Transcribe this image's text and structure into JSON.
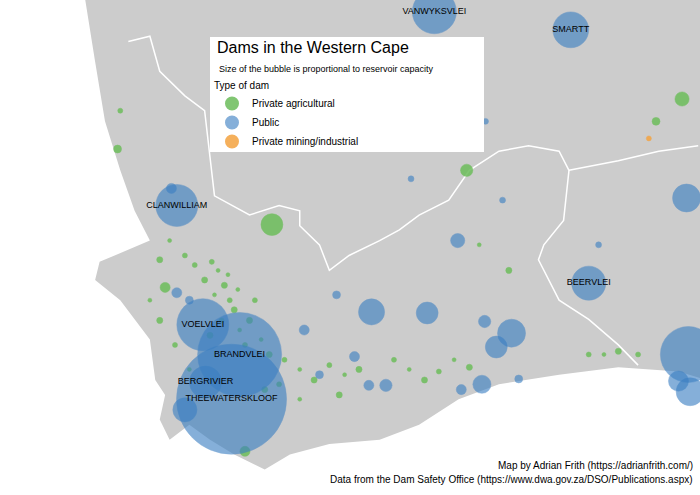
{
  "chart_data": {
    "type": "bubble_map",
    "title": "Dams in the Western Cape",
    "subtitle": "Size of the bubble is proportional to reservoir capacity",
    "legend_title": "Type of dam",
    "xlim": [
      16.9,
      24.7
    ],
    "ylim": [
      -34.9,
      -30.25
    ],
    "tick_labels": false,
    "grid": false,
    "land": {
      "color": "#cccccc",
      "lon": [
        24.7,
        17.85,
        17.96,
        18.07,
        18.24,
        18.4,
        18.57,
        18.01,
        17.96,
        18.24,
        18.57,
        18.63,
        18.74,
        18.68,
        18.79,
        19.01,
        19.24,
        19.51,
        19.85,
        20.13,
        20.57,
        21.13,
        21.57,
        22.01,
        22.46,
        23.13,
        23.79,
        24.46,
        24.7
      ],
      "lat": [
        -30.25,
        -30.25,
        -30.83,
        -31.39,
        -31.85,
        -32.23,
        -32.51,
        -32.71,
        -32.88,
        -33.07,
        -33.44,
        -33.82,
        -33.96,
        -34.19,
        -34.38,
        -34.24,
        -34.38,
        -34.52,
        -34.66,
        -34.52,
        -34.42,
        -34.38,
        -34.24,
        -34.0,
        -33.86,
        -33.77,
        -33.7,
        -33.74,
        -33.8
      ]
    },
    "borders": {
      "color": "#ffffff",
      "lines": [
        {
          "lon": [
            18.33,
            18.57,
            18.68,
            18.96,
            19.18,
            19.24,
            19.29,
            19.68,
            20.01,
            20.24,
            20.24,
            20.46,
            20.57,
            20.79,
            21.13,
            21.35,
            21.57,
            21.9,
            22.13,
            22.46,
            22.79,
            23.13,
            23.24,
            23.18,
            22.96,
            22.9,
            23.13,
            23.46,
            23.79,
            24.01
          ],
          "lat": [
            -30.64,
            -30.59,
            -30.92,
            -31.15,
            -31.29,
            -31.76,
            -32.09,
            -32.27,
            -32.18,
            -32.23,
            -32.37,
            -32.55,
            -32.79,
            -32.65,
            -32.51,
            -32.41,
            -32.27,
            -32.13,
            -31.85,
            -31.67,
            -31.62,
            -31.67,
            -31.85,
            -32.32,
            -32.55,
            -32.69,
            -33.07,
            -33.25,
            -33.49,
            -33.68
          ]
        },
        {
          "lon": [
            23.24,
            23.79,
            24.24,
            24.68
          ],
          "lat": [
            -31.85,
            -31.76,
            -31.67,
            -31.62
          ]
        }
      ]
    },
    "series": [
      {
        "name": "Private agricultural",
        "color": "#6cbd5b",
        "lon": [
          19.93,
          24.5,
          22.1,
          18.21,
          24.21,
          18.74,
          19.63,
          19.26,
          19.33,
          19.4,
          19.46,
          19.29,
          19.51,
          19.37,
          19.57,
          19.24,
          19.63,
          19.44,
          19.18,
          19.07,
          19.55,
          19.68,
          19.74,
          19.81,
          19.9,
          20.07,
          20.24,
          20.4,
          20.57,
          20.74,
          20.9,
          21.29,
          21.46,
          21.63,
          21.79,
          21.96,
          22.13,
          23.46,
          23.63,
          23.79,
          24.01,
          18.79,
          18.68,
          18.96,
          18.57,
          18.68,
          18.85,
          19.01,
          19.85,
          20.01,
          20.24,
          20.68,
          18.24,
          22.24,
          22.57
        ],
        "lat": [
          -32.36,
          -31.18,
          -31.85,
          -31.65,
          -31.39,
          -32.95,
          -34.49,
          -32.71,
          -32.79,
          -32.93,
          -33.07,
          -33.02,
          -33.16,
          -33.26,
          -33.35,
          -33.4,
          -33.49,
          -32.83,
          -32.88,
          -32.74,
          -32.97,
          -33.26,
          -33.07,
          -33.44,
          -33.58,
          -33.63,
          -33.72,
          -33.82,
          -33.68,
          -33.77,
          -33.72,
          -33.63,
          -33.72,
          -33.82,
          -33.74,
          -33.63,
          -33.7,
          -33.58,
          -33.58,
          -33.55,
          -33.58,
          -32.51,
          -32.69,
          -32.65,
          -33.07,
          -33.26,
          -33.49,
          -33.72,
          -33.91,
          -33.86,
          -34.0,
          -33.96,
          -31.29,
          -32.55,
          -32.79
        ],
        "capacity": [
          19,
          8,
          6,
          2.5,
          2.5,
          4,
          4,
          1,
          0.5,
          1.5,
          1,
          0.5,
          1.5,
          1,
          0.5,
          1.5,
          1,
          0.5,
          1.5,
          1,
          0.5,
          1.5,
          1,
          0.5,
          1.5,
          1,
          0.5,
          1.5,
          1,
          0.5,
          1.5,
          1,
          0.5,
          1.5,
          1,
          0.5,
          1.5,
          1,
          0.5,
          1.5,
          1,
          0.5,
          1.5,
          1,
          0.5,
          1.5,
          1,
          0.5,
          1.5,
          1,
          0.5,
          1.5,
          1,
          0.5,
          1.5
        ]
      },
      {
        "name": "Public",
        "color": "#3b7fc2",
        "lon": [
          18.87,
          19.16,
          19.57,
          19.19,
          19.48,
          21.74,
          23.26,
          23.46,
          21.04,
          21.66,
          22.6,
          22.43,
          24.57,
          24.55,
          22.0,
          24.59,
          24.46,
          22.27,
          21.2,
          21.01,
          20.85,
          18.96,
          18.81,
          18.87,
          22.3,
          22.04,
          20.46,
          23.57,
          22.5,
          21.48,
          22.31,
          20.65,
          20.29,
          22.68,
          19.01
        ],
        "lat": [
          -32.18,
          -33.3,
          -33.58,
          -33.84,
          -34.0,
          -30.36,
          -30.53,
          -32.91,
          -33.18,
          -33.19,
          -33.38,
          -33.51,
          -33.58,
          -32.11,
          -32.51,
          -33.93,
          -33.83,
          -33.86,
          -33.87,
          -33.87,
          -33.6,
          -34.1,
          -32.02,
          -33.0,
          -33.27,
          -33.91,
          -33.77,
          -32.55,
          -32.13,
          -31.93,
          -31.39,
          -33.02,
          -33.35,
          -33.81,
          -33.07
        ],
        "capacity": [
          70,
          107,
          280,
          41,
          480,
          77,
          51,
          46,
          27,
          19,
          31,
          19,
          124,
          31,
          8,
          31,
          16,
          13,
          6,
          4,
          4,
          23,
          4,
          4,
          6,
          4,
          2.5,
          1.4,
          1.4,
          1.4,
          1.4,
          2.5,
          4,
          2.5,
          2.5
        ],
        "labels": [
          "CLANWILLIAM",
          "VOELVLEI",
          "BRANDVLEI",
          "BERGRIVIER",
          "THEEWATERSKLOOF",
          "VANWYKSVLEI",
          "SMARTT",
          "BEERVLEI",
          null,
          null,
          null,
          null,
          null,
          null,
          null,
          null,
          null,
          null,
          null,
          null,
          null,
          null,
          null,
          null,
          null,
          null,
          null,
          null,
          null,
          null,
          null,
          null,
          null,
          null,
          null
        ]
      },
      {
        "name": "Private mining/industrial",
        "color": "#f4a340",
        "lon": [
          24.13
        ],
        "lat": [
          -31.55
        ],
        "capacity": [
          1
        ]
      }
    ],
    "credits": [
      "Map by Adrian Frith (https://adrianfrith.com/)",
      "Data from the Dam Safety Office (https://www.dwa.gov.za/DSO/Publications.aspx)"
    ]
  }
}
